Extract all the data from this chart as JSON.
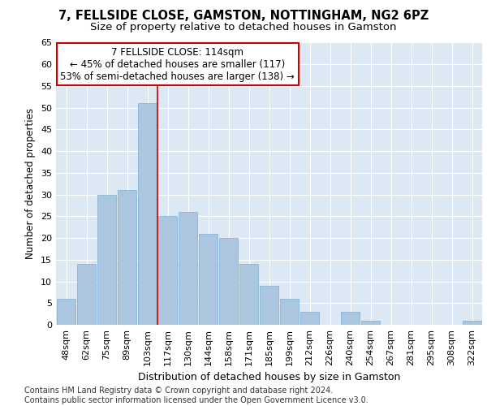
{
  "title1": "7, FELLSIDE CLOSE, GAMSTON, NOTTINGHAM, NG2 6PZ",
  "title2": "Size of property relative to detached houses in Gamston",
  "xlabel": "Distribution of detached houses by size in Gamston",
  "ylabel": "Number of detached properties",
  "categories": [
    "48sqm",
    "62sqm",
    "75sqm",
    "89sqm",
    "103sqm",
    "117sqm",
    "130sqm",
    "144sqm",
    "158sqm",
    "171sqm",
    "185sqm",
    "199sqm",
    "212sqm",
    "226sqm",
    "240sqm",
    "254sqm",
    "267sqm",
    "281sqm",
    "295sqm",
    "308sqm",
    "322sqm"
  ],
  "values": [
    6,
    14,
    30,
    31,
    51,
    25,
    26,
    21,
    20,
    14,
    9,
    6,
    3,
    0,
    3,
    1,
    0,
    0,
    0,
    0,
    1
  ],
  "bar_color": "#adc6e0",
  "bar_edgecolor": "#7aafd4",
  "bar_linewidth": 0.5,
  "vline_x": 4.5,
  "vline_color": "#cc0000",
  "annotation_box_text": "7 FELLSIDE CLOSE: 114sqm\n← 45% of detached houses are smaller (117)\n53% of semi-detached houses are larger (138) →",
  "ylim": [
    0,
    65
  ],
  "yticks": [
    0,
    5,
    10,
    15,
    20,
    25,
    30,
    35,
    40,
    45,
    50,
    55,
    60,
    65
  ],
  "footnote": "Contains HM Land Registry data © Crown copyright and database right 2024.\nContains public sector information licensed under the Open Government Licence v3.0.",
  "background_color": "#dde8f5",
  "grid_color": "#ffffff",
  "title1_fontsize": 10.5,
  "title2_fontsize": 9.5,
  "xlabel_fontsize": 9,
  "ylabel_fontsize": 8.5,
  "tick_fontsize": 8,
  "annotation_fontsize": 8.5,
  "footnote_fontsize": 7
}
